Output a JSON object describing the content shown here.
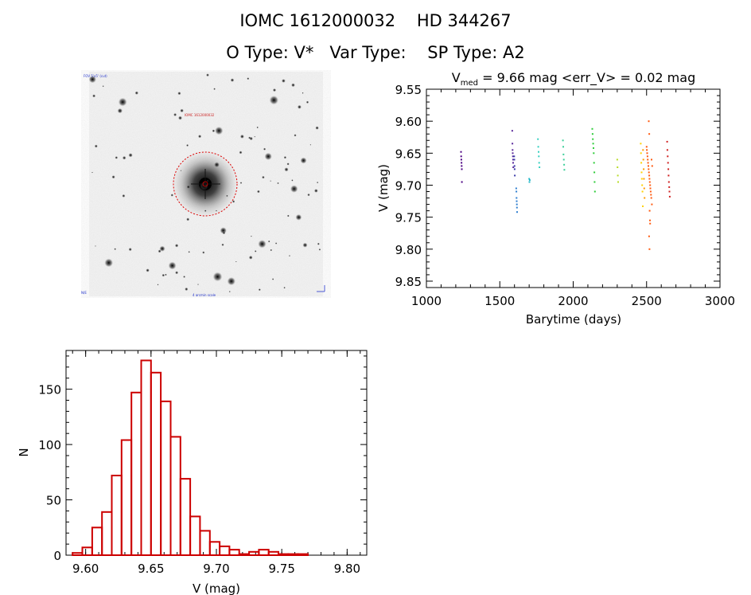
{
  "header": {
    "title_line1": "IOMC 1612000032    HD 344267",
    "title_line2": "O Type: V*   Var Type:    SP Type: A2"
  },
  "colors": {
    "axis": "#000000",
    "histogram": "#cc0000",
    "aperture": "#dd0000"
  },
  "chart_data": [
    {
      "type": "image",
      "description_label": "sky cutout"
    },
    {
      "type": "scatter",
      "title_prefix": "V",
      "title_sub": "med",
      "title_rest": " = 9.66 mag <err_V> = 0.02 mag",
      "xlabel": "Barytime (days)",
      "ylabel": "V (mag)",
      "xlim": [
        1000,
        3000
      ],
      "ylim": [
        9.86,
        9.55
      ],
      "x_ticks": [
        1000,
        1500,
        2000,
        2500,
        3000
      ],
      "y_ticks": [
        "9.55",
        "9.60",
        "9.65",
        "9.70",
        "9.75",
        "9.80",
        "9.85"
      ],
      "y_tick_values": [
        9.55,
        9.6,
        9.65,
        9.7,
        9.75,
        9.8,
        9.85
      ],
      "series": [
        {
          "color": "#4b0082",
          "x": [
            1236,
            1237,
            1238,
            1239,
            1240,
            1241,
            1242
          ],
          "y": [
            9.648,
            9.655,
            9.66,
            9.665,
            9.67,
            9.675,
            9.695
          ]
        },
        {
          "color": "#5b2a9c",
          "x": [
            1585,
            1586,
            1587,
            1588,
            1589,
            1590,
            1591,
            1592
          ],
          "y": [
            9.615,
            9.635,
            9.645,
            9.65,
            9.655,
            9.66,
            9.665,
            9.672
          ]
        },
        {
          "color": "#3a3aa8",
          "x": [
            1598,
            1599,
            1600,
            1601,
            1602
          ],
          "y": [
            9.655,
            9.66,
            9.67,
            9.675,
            9.685
          ]
        },
        {
          "color": "#2f7fd0",
          "x": [
            1612,
            1613,
            1614,
            1615,
            1616,
            1617,
            1618
          ],
          "y": [
            9.705,
            9.71,
            9.72,
            9.725,
            9.73,
            9.735,
            9.742
          ]
        },
        {
          "color": "#22b8c8",
          "x": [
            1700,
            1702,
            1704
          ],
          "y": [
            9.69,
            9.695,
            9.692
          ]
        },
        {
          "color": "#36d0c0",
          "x": [
            1760,
            1762,
            1764,
            1766,
            1768,
            1770
          ],
          "y": [
            9.628,
            9.64,
            9.648,
            9.655,
            9.665,
            9.672
          ]
        },
        {
          "color": "#3ccf9a",
          "x": [
            1930,
            1932,
            1934,
            1936,
            1938,
            1940
          ],
          "y": [
            9.63,
            9.64,
            9.652,
            9.66,
            9.668,
            9.676
          ]
        },
        {
          "color": "#2ecc3a",
          "x": [
            2130,
            2132,
            2134,
            2136,
            2138,
            2140,
            2142,
            2144,
            2146,
            2148
          ],
          "y": [
            9.612,
            9.62,
            9.628,
            9.635,
            9.642,
            9.65,
            9.665,
            9.68,
            9.695,
            9.71
          ]
        },
        {
          "color": "#b8dc2a",
          "x": [
            2300,
            2302,
            2304,
            2306
          ],
          "y": [
            9.66,
            9.672,
            9.685,
            9.695
          ]
        },
        {
          "color": "#ffd200",
          "x": [
            2460,
            2462,
            2464,
            2466,
            2468,
            2470,
            2472,
            2474
          ],
          "y": [
            9.635,
            9.65,
            9.665,
            9.68,
            9.69,
            9.7,
            9.71,
            9.733
          ]
        },
        {
          "color": "#ff9a00",
          "x": [
            2476,
            2478,
            2480,
            2482,
            2484,
            2486
          ],
          "y": [
            9.645,
            9.66,
            9.675,
            9.69,
            9.705,
            9.72
          ]
        },
        {
          "color": "#ff5a10",
          "x": [
            2500,
            2504,
            2508,
            2512,
            2516,
            2520,
            2524,
            2528,
            2532,
            2536,
            2502,
            2506,
            2510,
            2514,
            2518,
            2522,
            2526,
            2530,
            2534,
            2538,
            2515,
            2518,
            2521,
            2524,
            2517,
            2520,
            2523
          ],
          "y": [
            9.64,
            9.65,
            9.66,
            9.67,
            9.68,
            9.69,
            9.7,
            9.71,
            9.72,
            9.73,
            9.645,
            9.655,
            9.665,
            9.675,
            9.685,
            9.695,
            9.705,
            9.715,
            9.66,
            9.67,
            9.6,
            9.62,
            9.74,
            9.76,
            9.78,
            9.8,
            9.755
          ]
        },
        {
          "color": "#d02020",
          "x": [
            2640,
            2642,
            2644,
            2646,
            2648,
            2650,
            2652,
            2654,
            2656,
            2658
          ],
          "y": [
            9.632,
            9.645,
            9.655,
            9.665,
            9.675,
            9.685,
            9.695,
            9.703,
            9.71,
            9.718
          ]
        }
      ]
    },
    {
      "type": "bar",
      "xlabel": "V (mag)",
      "ylabel": "N",
      "xlim": [
        9.585,
        9.815
      ],
      "ylim": [
        0,
        185
      ],
      "x_ticks": [
        "9.60",
        "9.65",
        "9.70",
        "9.75",
        "9.80"
      ],
      "x_tick_values": [
        9.6,
        9.65,
        9.7,
        9.75,
        9.8
      ],
      "y_ticks": [
        "0",
        "50",
        "100",
        "150"
      ],
      "y_tick_values": [
        0,
        50,
        100,
        150
      ],
      "bin_start": 9.59,
      "bin_width": 0.0075,
      "values": [
        2,
        7,
        25,
        39,
        72,
        104,
        147,
        176,
        165,
        139,
        107,
        69,
        35,
        22,
        12,
        8,
        5,
        1,
        3,
        5,
        3,
        1,
        1,
        1
      ]
    }
  ]
}
